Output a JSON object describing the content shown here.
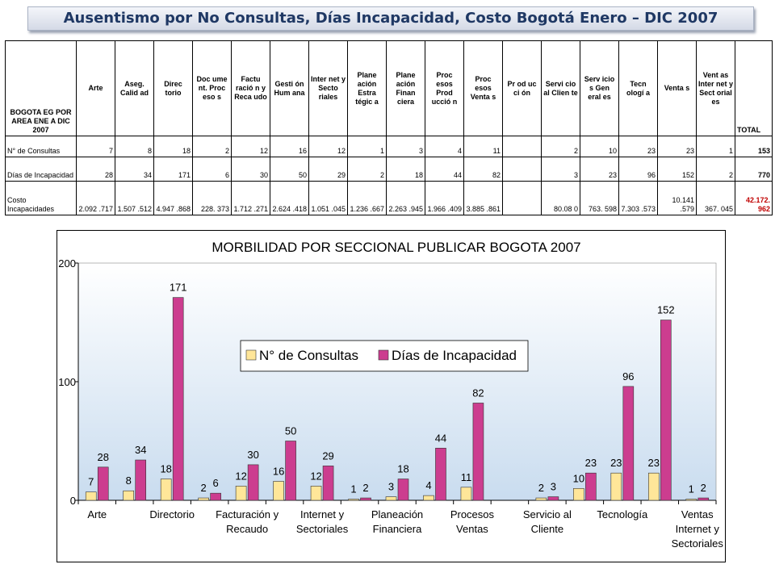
{
  "title": "Ausentismo por No Consultas, Días Incapacidad, Costo Bogotá Enero – DIC 2007",
  "table": {
    "corner_header": "BOGOTA EG POR AREA ENE A DIC 2007",
    "columns": [
      "Arte",
      "Aseg. Calid ad",
      "Direc torio",
      "Doc ume nt. Proc eso s",
      "Factu ració n y Reca udo",
      "Gesti ón Hum ana",
      "Inter net y Secto riales",
      "Plane ación Estra tégic a",
      "Plane ación Finan ciera",
      "Proc esos Prod ucció n",
      "Proc esos Venta s",
      "Pr od uc ci ón",
      "Servi cio al Clien te",
      "Serv icio s Gen eral es",
      "Tecn ologí a",
      "Venta s",
      "Vent as Inter net y Sect orial es"
    ],
    "total_header": "TOTAL",
    "rows": [
      {
        "label": "N° de Consultas",
        "values": [
          "7",
          "8",
          "18",
          "2",
          "12",
          "16",
          "12",
          "1",
          "3",
          "4",
          "11",
          "",
          "2",
          "10",
          "23",
          "23",
          "1"
        ],
        "total": "153"
      },
      {
        "label": "Días de Incapacidad",
        "values": [
          "28",
          "34",
          "171",
          "6",
          "30",
          "50",
          "29",
          "2",
          "18",
          "44",
          "82",
          "",
          "3",
          "23",
          "96",
          "152",
          "2"
        ],
        "total": "770"
      },
      {
        "label": "Costo Incapacidades",
        "values": [
          "2.092 .717",
          "1.507 .512",
          "4.947 .868",
          "228. 373",
          "1.712 .271",
          "2.624 .418",
          "1.051 .045",
          "1.236 .667",
          "2.263 .945",
          "1.966 .409",
          "3.885 .861",
          "",
          "80.08 0",
          "763. 598",
          "7.303 .573",
          "10.141 .579",
          "367. 045"
        ],
        "total": "42.172. 962"
      }
    ]
  },
  "chart_data": {
    "type": "bar",
    "title": "MORBILIDAD POR SECCIONAL PUBLICAR BOGOTA   2007",
    "xlabel": "",
    "ylabel": "",
    "ylim": [
      0,
      200
    ],
    "yticks": [
      "0",
      "100",
      "200"
    ],
    "categories": [
      "Arte",
      "Aseg. Calidad",
      "Directorio",
      "Document. Procesos",
      "Facturación y Recaudo",
      "Gestión Humana",
      "Internet y Sectoriales",
      "Planeación Estratégica",
      "Planeación Financiera",
      "Procesos Producción",
      "Procesos Ventas",
      "Producción",
      "Servicio al Cliente",
      "Servicios Generales",
      "Tecnología",
      "Ventas",
      "Ventas Internet y Sectoriales"
    ],
    "visible_tick_labels": [
      "Arte",
      "",
      "Directorio",
      "",
      "Facturación y Recaudo",
      "",
      "Internet y Sectoriales",
      "",
      "Planeación Financiera",
      "",
      "Procesos Ventas",
      "",
      "Servicio al Cliente",
      "",
      "Tecnología",
      "",
      "Ventas Internet y Sectoriales"
    ],
    "series": [
      {
        "name": "N° de Consultas",
        "color": "#ffe699",
        "values": [
          7,
          8,
          18,
          2,
          12,
          16,
          12,
          1,
          3,
          4,
          11,
          null,
          2,
          10,
          23,
          23,
          1
        ]
      },
      {
        "name": "Días de Incapacidad",
        "color": "#cc3d8f",
        "values": [
          28,
          34,
          171,
          6,
          30,
          50,
          29,
          2,
          18,
          44,
          82,
          null,
          3,
          23,
          96,
          152,
          2
        ]
      }
    ],
    "legend_position": "center",
    "plot_background": "gradient light blue"
  }
}
